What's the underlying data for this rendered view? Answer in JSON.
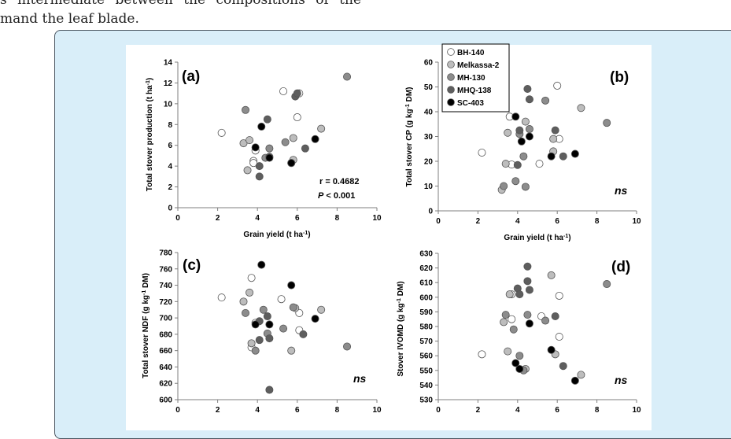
{
  "intro_text": {
    "line1": "s intermediate between the compositions of the",
    "line2": "mand the leaf blade."
  },
  "colors": {
    "frame_background": "#d9eef9",
    "frame_border": "#4a5560",
    "BH-140": "#ffffff",
    "Melkassa-2": "#bdbdbd",
    "MH-130": "#8c8c8c",
    "MHQ-138": "#5e5e5e",
    "SC-403": "#000000"
  },
  "legend": [
    "BH-140",
    "Melkassa-2",
    "MH-130",
    "MHQ-138",
    "SC-403"
  ],
  "chart_data": [
    {
      "type": "scatter",
      "panel_label": "(a)",
      "xlabel": "Grain yield (t ha-1)",
      "ylabel": "Total stover production (t ha-1)",
      "xlim": [
        0,
        10
      ],
      "ylim": [
        0,
        14
      ],
      "xticks": [
        "0",
        "2",
        "4",
        "6",
        "8",
        "10"
      ],
      "yticks": [
        "0",
        "2",
        "4",
        "6",
        "8",
        "10",
        "12",
        "14"
      ],
      "annotation": [
        "r = 0.4682",
        "P < 0.001"
      ],
      "series": [
        {
          "name": "BH-140",
          "points": [
            [
              2.2,
              7.2
            ],
            [
              5.3,
              11.2
            ],
            [
              6.1,
              11.0
            ],
            [
              6.0,
              8.7
            ],
            [
              3.8,
              4.5
            ],
            [
              3.8,
              4.3
            ],
            [
              3.9,
              5.5
            ]
          ]
        },
        {
          "name": "Melkassa-2",
          "points": [
            [
              3.3,
              6.2
            ],
            [
              3.6,
              6.5
            ],
            [
              3.5,
              3.6
            ],
            [
              5.8,
              6.7
            ],
            [
              5.8,
              4.6
            ],
            [
              7.2,
              7.6
            ]
          ]
        },
        {
          "name": "MH-130",
          "points": [
            [
              3.4,
              9.4
            ],
            [
              4.4,
              4.8
            ],
            [
              4.6,
              5.7
            ],
            [
              5.4,
              6.3
            ],
            [
              5.7,
              4.3
            ],
            [
              8.5,
              12.6
            ]
          ]
        },
        {
          "name": "MHQ-138",
          "points": [
            [
              4.1,
              3.0
            ],
            [
              4.1,
              4.0
            ],
            [
              4.5,
              8.5
            ],
            [
              4.6,
              4.9
            ],
            [
              5.9,
              10.7
            ],
            [
              6.0,
              11.0
            ],
            [
              6.4,
              5.7
            ]
          ]
        },
        {
          "name": "SC-403",
          "points": [
            [
              3.9,
              5.8
            ],
            [
              4.2,
              7.8
            ],
            [
              4.6,
              4.8
            ],
            [
              5.7,
              4.3
            ],
            [
              6.9,
              6.6
            ]
          ]
        }
      ]
    },
    {
      "type": "scatter",
      "panel_label": "(b)",
      "xlabel": "Grain yield (t ha-1)",
      "ylabel": "Total stover CP (g kg-1 DM)",
      "xlim": [
        0,
        10
      ],
      "ylim": [
        0,
        60
      ],
      "xticks": [
        "0",
        "2",
        "4",
        "6",
        "8",
        "10"
      ],
      "yticks": [
        "0",
        "10",
        "20",
        "30",
        "40",
        "50",
        "60"
      ],
      "annotation": [
        "ns"
      ],
      "series": [
        {
          "name": "BH-140",
          "points": [
            [
              2.2,
              23.5
            ],
            [
              6.0,
              50.5
            ],
            [
              6.1,
              29.0
            ],
            [
              5.1,
              19.0
            ],
            [
              3.6,
              38.0
            ],
            [
              3.7,
              18.7
            ]
          ]
        },
        {
          "name": "Melkassa-2",
          "points": [
            [
              3.2,
              8.5
            ],
            [
              3.4,
              19.0
            ],
            [
              3.5,
              31.5
            ],
            [
              4.4,
              36.0
            ],
            [
              5.8,
              29.0
            ],
            [
              5.8,
              24.0
            ],
            [
              7.2,
              41.5
            ]
          ]
        },
        {
          "name": "MH-130",
          "points": [
            [
              3.3,
              10.0
            ],
            [
              3.9,
              12.0
            ],
            [
              4.1,
              31.0
            ],
            [
              4.3,
              22.0
            ],
            [
              4.4,
              9.7
            ],
            [
              4.6,
              33.0
            ],
            [
              5.4,
              44.5
            ],
            [
              8.5,
              35.5
            ]
          ]
        },
        {
          "name": "MHQ-138",
          "points": [
            [
              4.1,
              32.5
            ],
            [
              4.0,
              18.5
            ],
            [
              4.5,
              49.2
            ],
            [
              4.6,
              45.0
            ],
            [
              5.9,
              32.5
            ],
            [
              6.3,
              22.0
            ]
          ]
        },
        {
          "name": "SC-403",
          "points": [
            [
              3.9,
              38.0
            ],
            [
              4.2,
              28.0
            ],
            [
              4.6,
              30.0
            ],
            [
              5.7,
              22.0
            ],
            [
              6.9,
              23.0
            ]
          ]
        }
      ]
    },
    {
      "type": "scatter",
      "panel_label": "(c)",
      "xlabel": "",
      "ylabel": "Total stover NDF (g kg-1 DM)",
      "xlim": [
        0,
        10
      ],
      "ylim": [
        600,
        780
      ],
      "xticks": [
        "0",
        "2",
        "4",
        "6",
        "8",
        "10"
      ],
      "yticks": [
        "600",
        "620",
        "640",
        "660",
        "680",
        "700",
        "720",
        "740",
        "760",
        "780"
      ],
      "annotation": [
        "ns"
      ],
      "series": [
        {
          "name": "BH-140",
          "points": [
            [
              2.2,
              725
            ],
            [
              3.7,
              749
            ],
            [
              5.2,
              723
            ],
            [
              6.1,
              706
            ],
            [
              6.1,
              685
            ],
            [
              3.7,
              664
            ],
            [
              3.9,
              694
            ]
          ]
        },
        {
          "name": "Melkassa-2",
          "points": [
            [
              3.3,
              720
            ],
            [
              3.6,
              731
            ],
            [
              3.7,
              669
            ],
            [
              5.7,
              660
            ],
            [
              5.9,
              712
            ],
            [
              7.2,
              710
            ]
          ]
        },
        {
          "name": "MH-130",
          "points": [
            [
              3.4,
              706
            ],
            [
              3.9,
              660
            ],
            [
              4.3,
              710
            ],
            [
              4.5,
              681
            ],
            [
              5.3,
              687
            ],
            [
              5.8,
              713
            ],
            [
              8.5,
              665
            ]
          ]
        },
        {
          "name": "MHQ-138",
          "points": [
            [
              4.1,
              696
            ],
            [
              4.1,
              673
            ],
            [
              4.5,
              702
            ],
            [
              4.6,
              675
            ],
            [
              4.6,
              612
            ],
            [
              6.3,
              680
            ]
          ]
        },
        {
          "name": "SC-403",
          "points": [
            [
              3.9,
              692
            ],
            [
              4.2,
              765
            ],
            [
              4.6,
              692
            ],
            [
              5.7,
              740
            ],
            [
              6.9,
              699
            ]
          ]
        }
      ]
    },
    {
      "type": "scatter",
      "panel_label": "(d)",
      "xlabel": "",
      "ylabel": "Stover IVOMD (g kg-1 DM)",
      "xlim": [
        0,
        10
      ],
      "ylim": [
        530,
        630
      ],
      "xticks": [
        "0",
        "2",
        "4",
        "6",
        "8",
        "10"
      ],
      "yticks": [
        "530",
        "540",
        "550",
        "560",
        "570",
        "580",
        "590",
        "600",
        "610",
        "620",
        "630"
      ],
      "annotation": [
        "ns"
      ],
      "series": [
        {
          "name": "BH-140",
          "points": [
            [
              2.2,
              561
            ],
            [
              3.7,
              585
            ],
            [
              3.7,
              602
            ],
            [
              5.2,
              587
            ],
            [
              6.1,
              601
            ],
            [
              6.1,
              573
            ]
          ]
        },
        {
          "name": "Melkassa-2",
          "points": [
            [
              3.3,
              583
            ],
            [
              3.5,
              563
            ],
            [
              3.6,
              602
            ],
            [
              4.4,
              551
            ],
            [
              5.7,
              615
            ],
            [
              5.9,
              561
            ],
            [
              7.2,
              547
            ]
          ]
        },
        {
          "name": "MH-130",
          "points": [
            [
              3.4,
              588
            ],
            [
              3.8,
              578
            ],
            [
              4.1,
              560
            ],
            [
              4.3,
              550
            ],
            [
              4.5,
              588
            ],
            [
              5.4,
              584
            ],
            [
              8.5,
              609
            ]
          ]
        },
        {
          "name": "MHQ-138",
          "points": [
            [
              4.0,
              606
            ],
            [
              4.1,
              602
            ],
            [
              4.5,
              621
            ],
            [
              4.5,
              611
            ],
            [
              4.6,
              605
            ],
            [
              5.9,
              587
            ],
            [
              6.3,
              553
            ]
          ]
        },
        {
          "name": "SC-403",
          "points": [
            [
              3.9,
              555
            ],
            [
              4.1,
              551
            ],
            [
              4.6,
              582
            ],
            [
              5.7,
              564
            ],
            [
              6.9,
              543
            ]
          ]
        }
      ]
    }
  ]
}
